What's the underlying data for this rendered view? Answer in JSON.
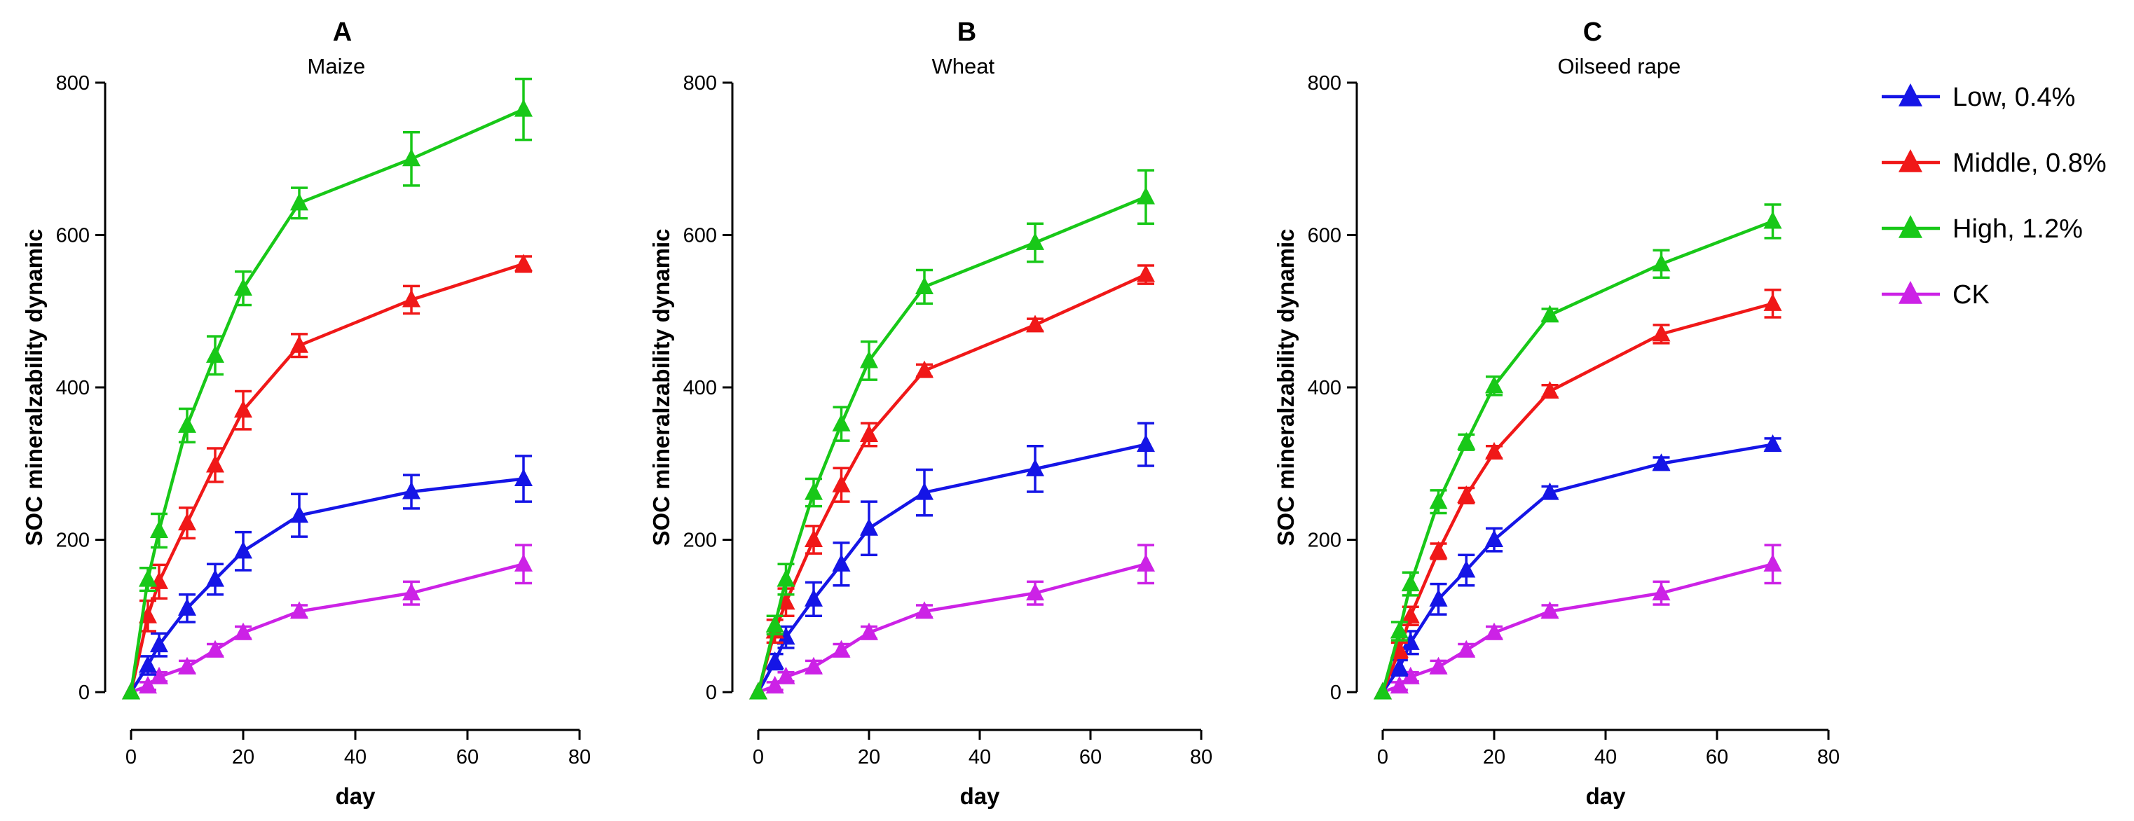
{
  "colors": {
    "Low, 0.4%": "#1515e6",
    "Middle, 0.8%": "#f01818",
    "High, 1.2%": "#18c818",
    "CK": "#cc22e6"
  },
  "legend": [
    {
      "label": "Low, 0.4%",
      "marker": "triangle"
    },
    {
      "label": "Middle, 0.8%",
      "marker": "triangle"
    },
    {
      "label": "High, 1.2%",
      "marker": "triangle"
    },
    {
      "label": "CK",
      "marker": "triangle"
    }
  ],
  "chart_data": [
    {
      "type": "line",
      "panel_label": "A",
      "title": "Maize",
      "xlabel": "day",
      "ylabel": "SOC mineralzability dynamic",
      "xlim": [
        0,
        80
      ],
      "ylim": [
        0,
        800
      ],
      "xticks": [
        "0",
        "20",
        "40",
        "60",
        "80"
      ],
      "yticks": [
        "0",
        "200",
        "400",
        "600",
        "800"
      ],
      "x": [
        0,
        3,
        5,
        10,
        15,
        20,
        30,
        50,
        70
      ],
      "series": [
        {
          "name": "Low, 0.4%",
          "values": [
            0,
            35,
            62,
            110,
            148,
            185,
            232,
            263,
            280
          ],
          "errors": [
            0,
            12,
            15,
            18,
            20,
            25,
            28,
            22,
            30
          ]
        },
        {
          "name": "Middle, 0.8%",
          "values": [
            0,
            100,
            145,
            222,
            298,
            370,
            455,
            515,
            562
          ],
          "errors": [
            0,
            20,
            22,
            20,
            22,
            25,
            15,
            18,
            10
          ]
        },
        {
          "name": "High, 1.2%",
          "values": [
            0,
            148,
            212,
            350,
            442,
            530,
            642,
            700,
            765
          ],
          "errors": [
            0,
            15,
            22,
            22,
            25,
            22,
            20,
            35,
            40
          ]
        },
        {
          "name": "CK",
          "values": [
            0,
            8,
            20,
            33,
            55,
            78,
            106,
            130,
            168
          ],
          "errors": [
            0,
            5,
            6,
            8,
            8,
            8,
            8,
            15,
            25
          ]
        }
      ]
    },
    {
      "type": "line",
      "panel_label": "B",
      "title": "Wheat",
      "xlabel": "day",
      "ylabel": "SOC mineralzability dynamic",
      "xlim": [
        0,
        80
      ],
      "ylim": [
        0,
        800
      ],
      "xticks": [
        "0",
        "20",
        "40",
        "60",
        "80"
      ],
      "yticks": [
        "0",
        "200",
        "400",
        "600",
        "800"
      ],
      "x": [
        0,
        3,
        5,
        10,
        15,
        20,
        30,
        50,
        70
      ],
      "series": [
        {
          "name": "Low, 0.4%",
          "values": [
            0,
            40,
            72,
            122,
            168,
            215,
            262,
            293,
            325
          ],
          "errors": [
            0,
            10,
            14,
            22,
            28,
            35,
            30,
            30,
            28
          ]
        },
        {
          "name": "Middle, 0.8%",
          "values": [
            0,
            80,
            118,
            200,
            272,
            338,
            422,
            482,
            548
          ],
          "errors": [
            0,
            15,
            18,
            18,
            22,
            15,
            8,
            8,
            12
          ]
        },
        {
          "name": "High, 1.2%",
          "values": [
            0,
            88,
            148,
            262,
            352,
            435,
            532,
            590,
            650
          ],
          "errors": [
            0,
            12,
            20,
            18,
            22,
            25,
            22,
            25,
            35
          ]
        },
        {
          "name": "CK",
          "values": [
            0,
            8,
            20,
            33,
            55,
            78,
            106,
            130,
            168
          ],
          "errors": [
            0,
            5,
            6,
            8,
            8,
            8,
            8,
            15,
            25
          ]
        }
      ]
    },
    {
      "type": "line",
      "panel_label": "C",
      "title": "Oilseed rape",
      "xlabel": "day",
      "ylabel": "SOC mineralzability dynamic",
      "xlim": [
        0,
        80
      ],
      "ylim": [
        0,
        800
      ],
      "xticks": [
        "0",
        "20",
        "40",
        "60",
        "80"
      ],
      "yticks": [
        "0",
        "200",
        "400",
        "600",
        "800"
      ],
      "x": [
        0,
        3,
        5,
        10,
        15,
        20,
        30,
        50,
        70
      ],
      "series": [
        {
          "name": "Low, 0.4%",
          "values": [
            0,
            32,
            65,
            122,
            160,
            200,
            262,
            300,
            325
          ],
          "errors": [
            0,
            10,
            15,
            20,
            20,
            15,
            8,
            8,
            8
          ]
        },
        {
          "name": "Middle, 0.8%",
          "values": [
            0,
            55,
            100,
            185,
            258,
            315,
            395,
            470,
            510
          ],
          "errors": [
            0,
            10,
            12,
            10,
            10,
            8,
            8,
            12,
            18
          ]
        },
        {
          "name": "High, 1.2%",
          "values": [
            0,
            80,
            142,
            250,
            328,
            402,
            495,
            562,
            618
          ],
          "errors": [
            0,
            12,
            15,
            15,
            10,
            12,
            8,
            18,
            22
          ]
        },
        {
          "name": "CK",
          "values": [
            0,
            8,
            20,
            33,
            55,
            78,
            106,
            130,
            168
          ],
          "errors": [
            0,
            5,
            6,
            8,
            8,
            8,
            8,
            15,
            25
          ]
        }
      ]
    }
  ]
}
